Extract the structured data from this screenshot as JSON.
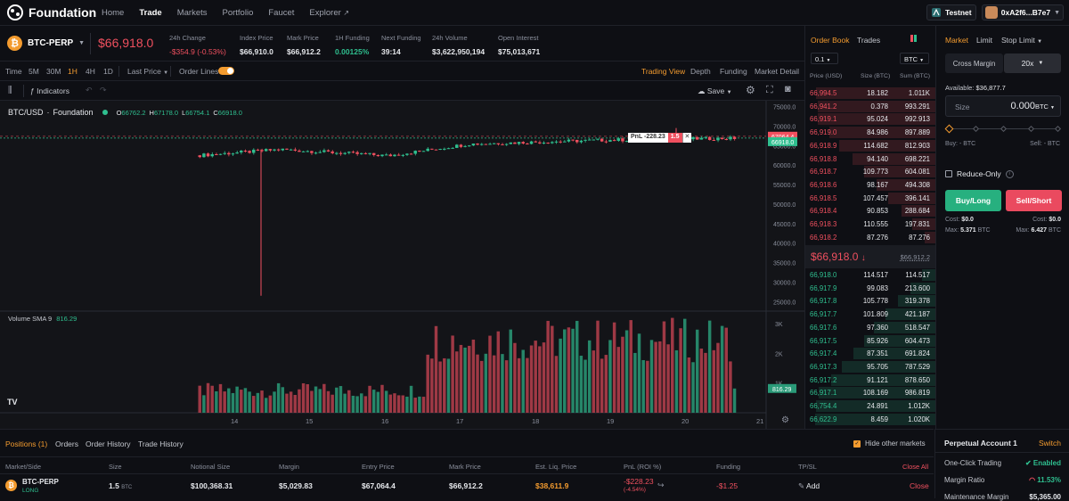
{
  "app": {
    "name": "Foundation"
  },
  "nav": {
    "items": [
      "Home",
      "Trade",
      "Markets",
      "Portfolio",
      "Faucet",
      "Explorer"
    ],
    "active": "Trade"
  },
  "network": {
    "label": "Testnet"
  },
  "wallet": {
    "address": "0xA2f6...B7e7"
  },
  "market": {
    "symbol": "BTC-PERP",
    "price": "$66,918.0",
    "stats": [
      {
        "label": "24h Change",
        "value": "-$354.9 (-0.53%)",
        "color": "red"
      },
      {
        "label": "Index Price",
        "value": "$66,910.0"
      },
      {
        "label": "Mark Price",
        "value": "$66,912.2"
      },
      {
        "label": "1H Funding",
        "value": "0.00125%",
        "color": "green"
      },
      {
        "label": "Next Funding",
        "value": "39:14"
      },
      {
        "label": "24h Volume",
        "value": "$3,622,950,194"
      },
      {
        "label": "Open Interest",
        "value": "$75,013,671"
      }
    ]
  },
  "toolbar": {
    "time_label": "Time",
    "intervals": [
      "5M",
      "30M",
      "1H",
      "4H",
      "1D"
    ],
    "active_interval": "1H",
    "price_source": "Last Price",
    "order_lines": "Order Lines",
    "views": [
      "Trading View",
      "Depth",
      "Funding",
      "Market Detail"
    ],
    "active_view": "Trading View",
    "indicators": "Indicators",
    "save": "Save"
  },
  "chart_header": {
    "pair": "BTC/USD",
    "exchange": "Foundation",
    "o": "66762.2",
    "h": "67178.0",
    "l": "66754.1",
    "c": "66918.0",
    "volume_label": "Volume SMA 9",
    "volume_value": "816.29",
    "pnl_tag": "PnL -228.23",
    "qty_tag": "1.5"
  },
  "chart_data": {
    "type": "candlestick",
    "price_axis": {
      "ticks": [
        "75000.0",
        "70000.0",
        "65000.0",
        "60000.0",
        "55000.0",
        "50000.0",
        "45000.0",
        "40000.0",
        "35000.0",
        "30000.0",
        "25000.0"
      ],
      "range": [
        23000,
        76500
      ]
    },
    "price_labels": {
      "high_marker": "67064.4",
      "current": "66918.0"
    },
    "volume_axis": {
      "ticks": [
        "3K",
        "2K",
        "1K"
      ],
      "current": "816.29"
    },
    "x_ticks": [
      "14",
      "15",
      "16",
      "17",
      "18",
      "19",
      "20",
      "21"
    ],
    "spike_low": 26500,
    "spike_high": 69500
  },
  "orderbook": {
    "tabs": [
      "Order Book",
      "Trades"
    ],
    "active_tab": "Order Book",
    "tick": "0.1",
    "unit": "BTC",
    "headers": [
      "Price (USD)",
      "Size (BTC)",
      "Sum (BTC)"
    ],
    "asks": [
      [
        "66,994.5",
        "18.182",
        "1.011K"
      ],
      [
        "66,941.2",
        "0.378",
        "993.291"
      ],
      [
        "66,919.1",
        "95.024",
        "992.913"
      ],
      [
        "66,919.0",
        "84.986",
        "897.889"
      ],
      [
        "66,918.9",
        "114.682",
        "812.903"
      ],
      [
        "66,918.8",
        "94.140",
        "698.221"
      ],
      [
        "66,918.7",
        "109.773",
        "604.081"
      ],
      [
        "66,918.6",
        "98.167",
        "494.308"
      ],
      [
        "66,918.5",
        "107.457",
        "396.141"
      ],
      [
        "66,918.4",
        "90.853",
        "288.684"
      ],
      [
        "66,918.3",
        "110.555",
        "197.831"
      ],
      [
        "66,918.2",
        "87.276",
        "87.276"
      ]
    ],
    "mid_price": "$66,918.0",
    "mid_mark": "$66,912.2",
    "bids": [
      [
        "66,918.0",
        "114.517",
        "114.517"
      ],
      [
        "66,917.9",
        "99.083",
        "213.600"
      ],
      [
        "66,917.8",
        "105.778",
        "319.378"
      ],
      [
        "66,917.7",
        "101.809",
        "421.187"
      ],
      [
        "66,917.6",
        "97.360",
        "518.547"
      ],
      [
        "66,917.5",
        "85.926",
        "604.473"
      ],
      [
        "66,917.4",
        "87.351",
        "691.824"
      ],
      [
        "66,917.3",
        "95.705",
        "787.529"
      ],
      [
        "66,917.2",
        "91.121",
        "878.650"
      ],
      [
        "66,917.1",
        "108.169",
        "986.819"
      ],
      [
        "66,754.4",
        "24.891",
        "1.012K"
      ],
      [
        "66,622.9",
        "8.459",
        "1.020K"
      ]
    ]
  },
  "order_form": {
    "types": [
      "Market",
      "Limit",
      "Stop Limit"
    ],
    "active_type": "Market",
    "margin_mode": "Cross Margin",
    "leverage": "20x",
    "available_label": "Available:",
    "available": "$36,877.7",
    "size_label": "Size",
    "size_value": "0.000",
    "size_unit": "BTC",
    "buy_est": "Buy: - BTC",
    "sell_est": "Sell: - BTC",
    "reduce_only": "Reduce-Only",
    "buy_label": "Buy/Long",
    "sell_label": "Sell/Short",
    "cost_label": "Cost:",
    "buy_cost": "$0.0",
    "sell_cost": "$0.0",
    "max_label": "Max:",
    "buy_max": "5.371",
    "sell_max": "6.427",
    "max_unit": "BTC"
  },
  "positions": {
    "tabs": [
      "Positions (1)",
      "Orders",
      "Order History",
      "Trade History"
    ],
    "active_tab": "Positions (1)",
    "hide_other": "Hide other markets",
    "headers": [
      "Market/Side",
      "Size",
      "Notional Size",
      "Margin",
      "Entry Price",
      "Mark Price",
      "Est. Liq. Price",
      "PnL (ROI %)",
      "Funding",
      "TP/SL"
    ],
    "close_all": "Close All",
    "row": {
      "market": "BTC-PERP",
      "side": "LONG",
      "size": "1.5",
      "size_unit": "BTC",
      "notional": "$100,368.31",
      "margin": "$5,029.83",
      "entry": "$67,064.4",
      "mark": "$66,912.2",
      "liq": "$38,611.9",
      "pnl": "-$228.23",
      "roi": "(-4.54%)",
      "funding": "-$1.25",
      "tpsl": "Add",
      "close": "Close"
    }
  },
  "account": {
    "title": "Perpetual Account 1",
    "switch": "Switch",
    "one_click_label": "One-Click Trading",
    "one_click_value": "Enabled",
    "margin_ratio_label": "Margin Ratio",
    "margin_ratio": "11.53%",
    "maintenance_label": "Maintenance Margin",
    "maintenance": "$5,365.00"
  }
}
